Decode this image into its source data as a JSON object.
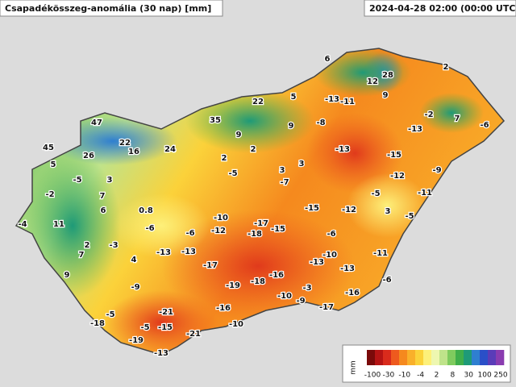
{
  "header": {
    "title": "Csapadékösszeg-anomália (30 nap) [mm]",
    "timestamp": "2024-04-28 02:00 (00:00 UTC)"
  },
  "stations": [
    6,
    28,
    12,
    9,
    2,
    22,
    5,
    -13,
    -11,
    35,
    9,
    -8,
    -2,
    7,
    -6,
    -13,
    47,
    22,
    16,
    24,
    9,
    2,
    -13,
    -15,
    45,
    26,
    2,
    3,
    -5,
    3,
    -9,
    -12,
    5,
    -5,
    3,
    -7,
    -11,
    -2,
    7,
    -5,
    6,
    0.8,
    -15,
    -12,
    3,
    -5,
    -4,
    11,
    -6,
    -10,
    -17,
    -15,
    -12,
    -6,
    -18,
    -6,
    2,
    -3,
    7,
    -13,
    -13,
    -10,
    -11,
    4,
    -13,
    -13,
    -17,
    -16,
    9,
    -18,
    -19,
    -6,
    -9,
    -3,
    -16,
    -10,
    -9,
    -17,
    -21,
    -16,
    -5,
    -18,
    -5,
    -15,
    -10,
    -21,
    -19,
    -13
  ],
  "legend": {
    "unit": "mm",
    "colors": [
      "#7a0a0a",
      "#b51414",
      "#d92b1c",
      "#ee5a1e",
      "#f5891e",
      "#f9b02a",
      "#fbd23a",
      "#fdf07a",
      "#eef7b0",
      "#bfe38a",
      "#7fcb5e",
      "#3fae4a",
      "#1e9a78",
      "#2f7fd0",
      "#2a4fc8",
      "#5a3cb8",
      "#8a3cb0"
    ],
    "ticks": [
      -100,
      -30,
      -10,
      -4,
      2,
      8,
      30,
      100,
      250
    ]
  }
}
